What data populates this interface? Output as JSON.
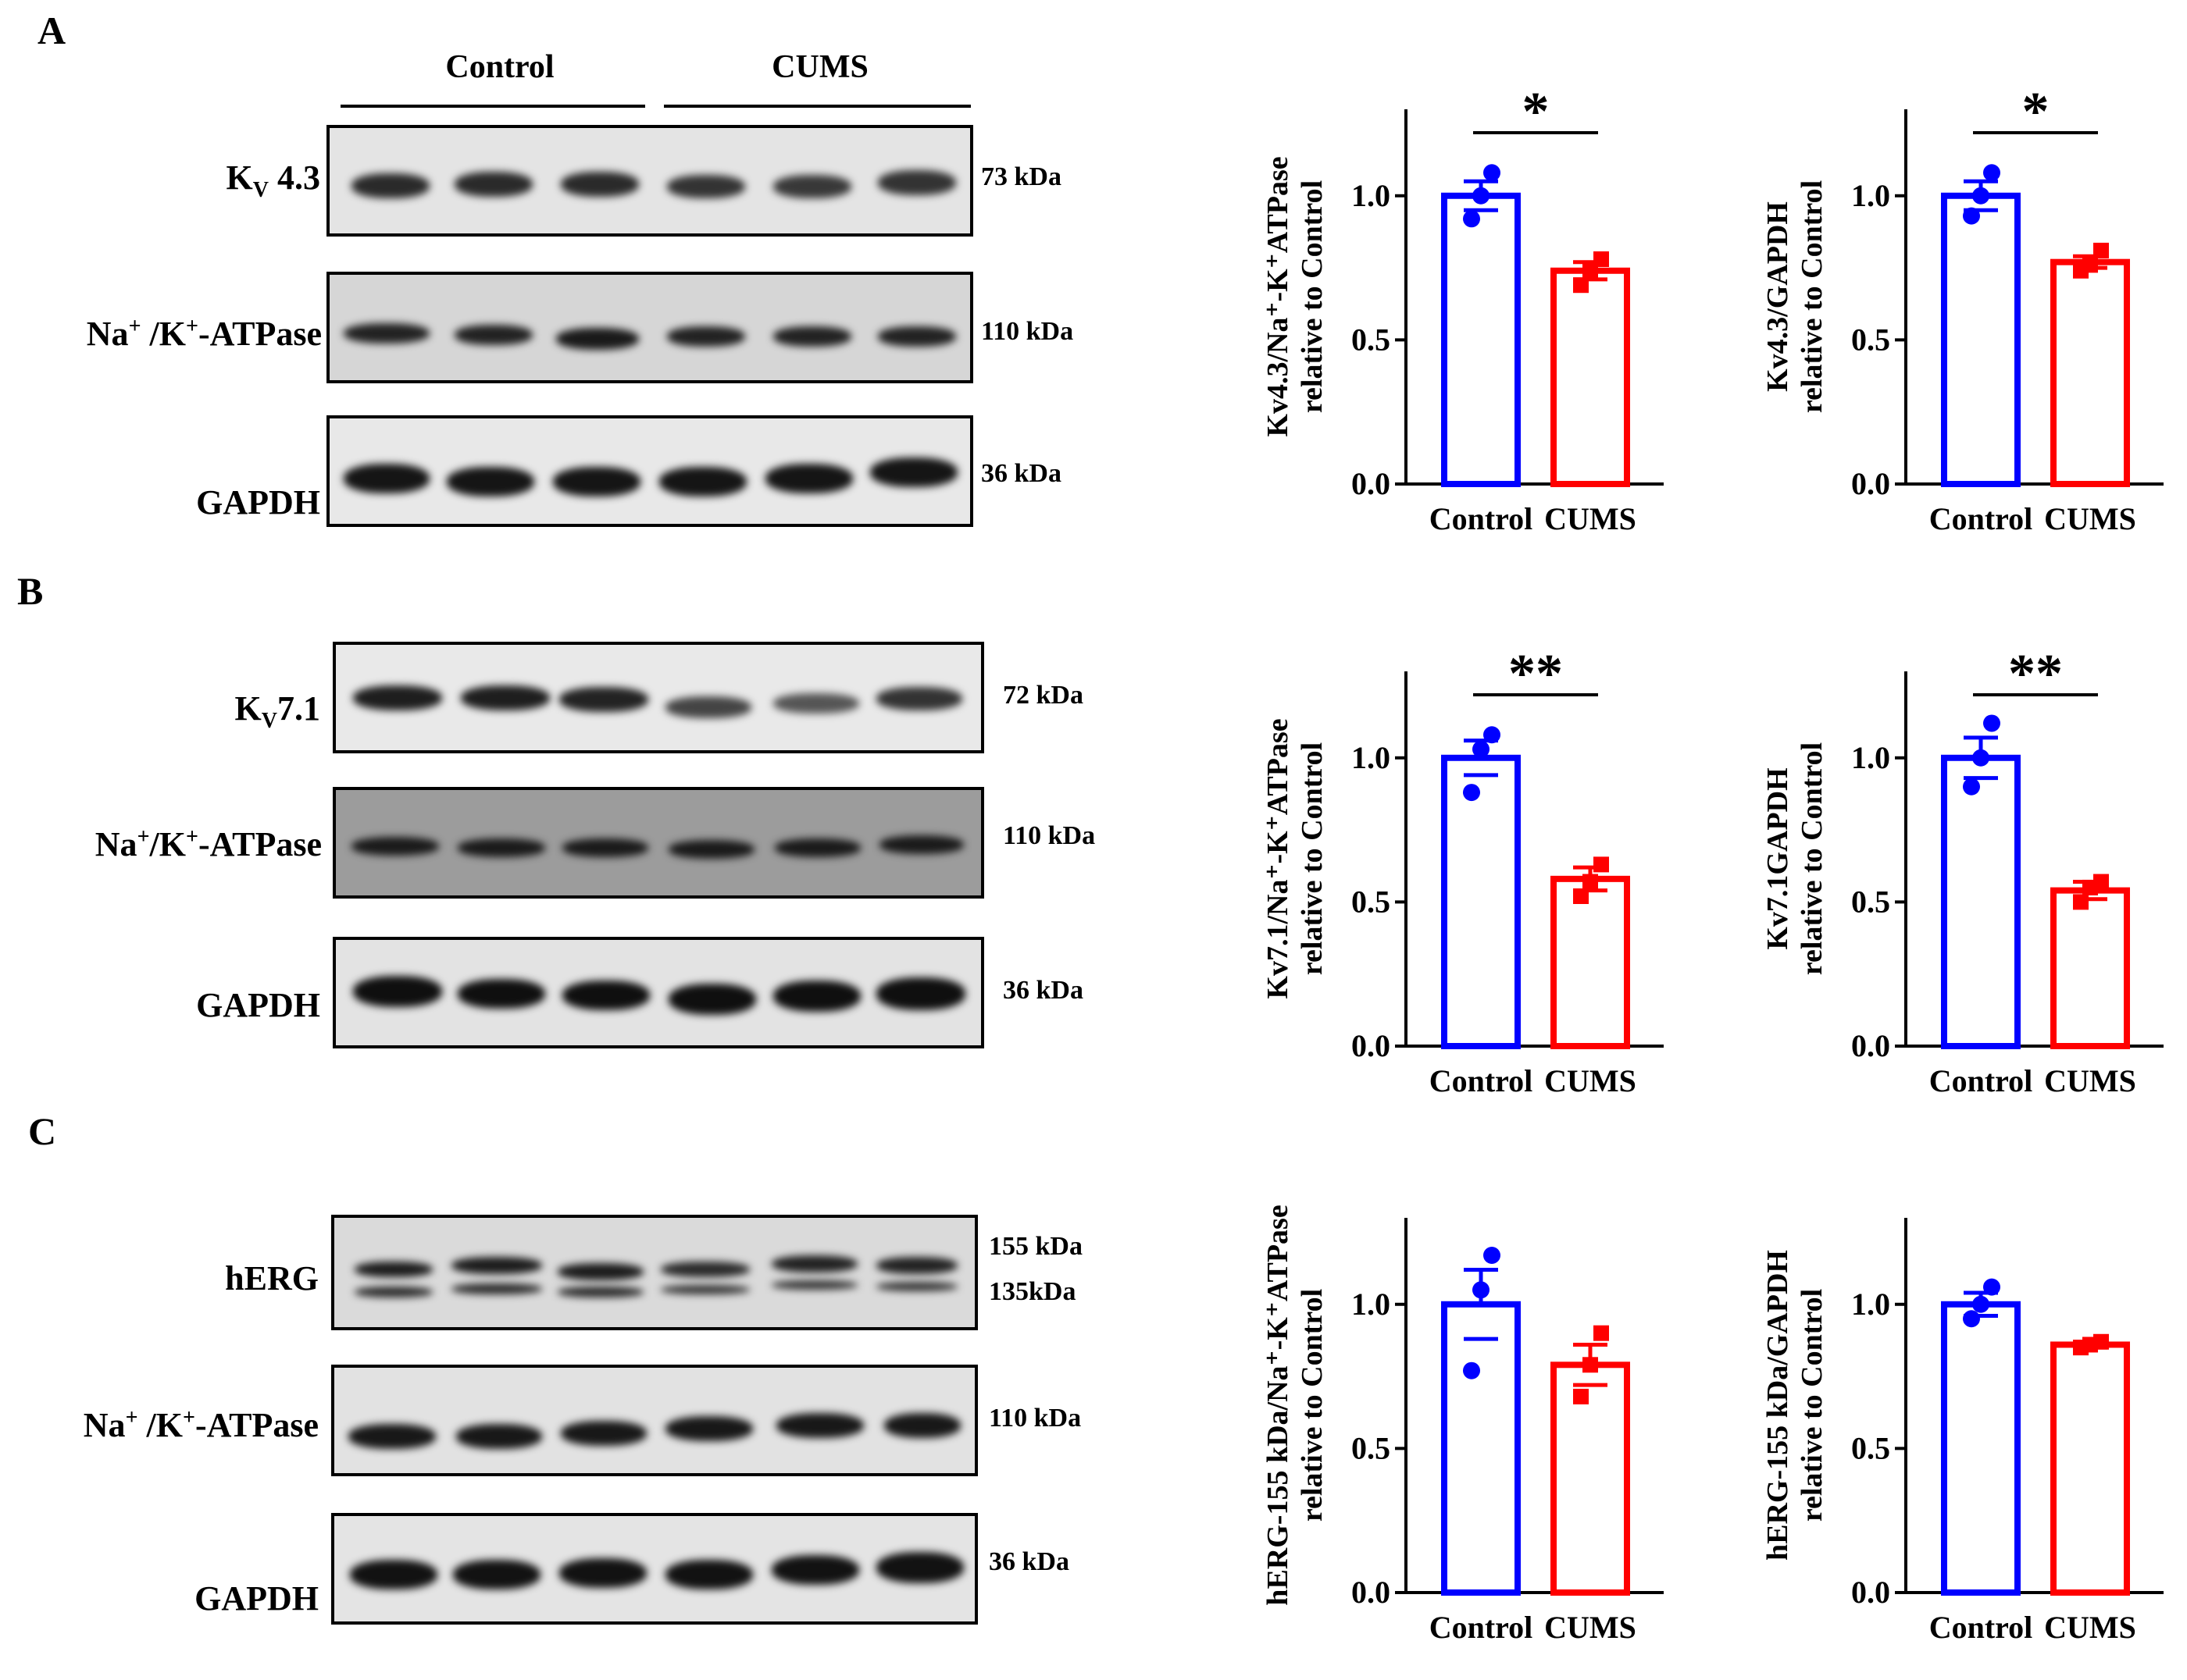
{
  "panels": [
    {
      "letter": "A",
      "groups": {
        "control": "Control",
        "cums": "CUMS"
      },
      "blots": [
        {
          "label_main": "K",
          "label_sub": "V",
          "label_rest": " 4.3",
          "kda": "73 kDa",
          "kda2": ""
        },
        {
          "label_main": "Na",
          "label_sup1": "+",
          "label_mid": " /K",
          "label_sup2": "+",
          "label_rest": "-ATPase",
          "kda": "110 kDa",
          "kda2": ""
        },
        {
          "label_main": "GAPDH",
          "kda": "36 kDa",
          "kda2": ""
        }
      ]
    },
    {
      "letter": "B",
      "blots": [
        {
          "label_main": "K",
          "label_sub": "V",
          "label_rest": "7.1",
          "kda": "72 kDa",
          "kda2": ""
        },
        {
          "label_main": "Na",
          "label_sup1": "+",
          "label_mid": "/K",
          "label_sup2": "+",
          "label_rest": "-ATPase",
          "kda": "110 kDa",
          "kda2": ""
        },
        {
          "label_main": "GAPDH",
          "kda": "36 kDa",
          "kda2": ""
        }
      ]
    },
    {
      "letter": "C",
      "blots": [
        {
          "label_main": "hERG",
          "kda": "155 kDa",
          "kda2": "135kDa"
        },
        {
          "label_main": "Na",
          "label_sup1": "+",
          "label_mid": " /K",
          "label_sup2": "+",
          "label_rest": "-ATPase",
          "kda": "110 kDa",
          "kda2": ""
        },
        {
          "label_main": "GAPDH",
          "kda": "36 kDa",
          "kda2": ""
        }
      ]
    }
  ],
  "chart_data": [
    {
      "type": "bar",
      "panel": "A",
      "categories": [
        "Control",
        "CUMS"
      ],
      "values": [
        1.0,
        0.74
      ],
      "sem": [
        0.05,
        0.03
      ],
      "points": [
        [
          0.92,
          1.0,
          1.08
        ],
        [
          0.69,
          0.74,
          0.78
        ]
      ],
      "ylabel_line1": "Kv4.3/Na⁺-K⁺ATPase",
      "ylabel_line2": "relative to Control",
      "yticks": [
        "0.0",
        "0.5",
        "1.0"
      ],
      "ylim": [
        0,
        1.3
      ],
      "significance": "*",
      "colors": [
        "#0000ff",
        "#ff0000"
      ]
    },
    {
      "type": "bar",
      "panel": "A",
      "categories": [
        "Control",
        "CUMS"
      ],
      "values": [
        1.0,
        0.77
      ],
      "sem": [
        0.05,
        0.02
      ],
      "points": [
        [
          0.93,
          1.0,
          1.08
        ],
        [
          0.74,
          0.76,
          0.81
        ]
      ],
      "ylabel_line1": "Kv4.3/GAPDH",
      "ylabel_line2": "relative to Control",
      "yticks": [
        "0.0",
        "0.5",
        "1.0"
      ],
      "ylim": [
        0,
        1.3
      ],
      "significance": "*",
      "colors": [
        "#0000ff",
        "#ff0000"
      ]
    },
    {
      "type": "bar",
      "panel": "B",
      "categories": [
        "Control",
        "CUMS"
      ],
      "values": [
        1.0,
        0.58
      ],
      "sem": [
        0.06,
        0.04
      ],
      "points": [
        [
          0.88,
          1.03,
          1.08
        ],
        [
          0.52,
          0.57,
          0.63
        ]
      ],
      "ylabel_line1": "Kv7.1/Na⁺-K⁺ATPase",
      "ylabel_line2": "relative to Control",
      "yticks": [
        "0.0",
        "0.5",
        "1.0"
      ],
      "ylim": [
        0,
        1.3
      ],
      "significance": "**",
      "colors": [
        "#0000ff",
        "#ff0000"
      ]
    },
    {
      "type": "bar",
      "panel": "B",
      "categories": [
        "Control",
        "CUMS"
      ],
      "values": [
        1.0,
        0.54
      ],
      "sem": [
        0.07,
        0.03
      ],
      "points": [
        [
          0.9,
          1.0,
          1.12
        ],
        [
          0.5,
          0.55,
          0.57
        ]
      ],
      "ylabel_line1": "Kv7.1GAPDH",
      "ylabel_line2": "relative to Control",
      "yticks": [
        "0.0",
        "0.5",
        "1.0"
      ],
      "ylim": [
        0,
        1.3
      ],
      "significance": "**",
      "colors": [
        "#0000ff",
        "#ff0000"
      ]
    },
    {
      "type": "bar",
      "panel": "C",
      "categories": [
        "Control",
        "CUMS"
      ],
      "values": [
        1.0,
        0.79
      ],
      "sem": [
        0.12,
        0.07
      ],
      "points": [
        [
          0.77,
          1.05,
          1.17
        ],
        [
          0.68,
          0.79,
          0.9
        ]
      ],
      "ylabel_line1": "hERG-155 kDa/Na⁺-K⁺ATPase",
      "ylabel_line2": "relative to Control",
      "yticks": [
        "0.0",
        "0.5",
        "1.0"
      ],
      "ylim": [
        0,
        1.3
      ],
      "significance": "",
      "colors": [
        "#0000ff",
        "#ff0000"
      ]
    },
    {
      "type": "bar",
      "panel": "C",
      "categories": [
        "Control",
        "CUMS"
      ],
      "values": [
        1.0,
        0.86
      ],
      "sem": [
        0.04,
        0.01
      ],
      "points": [
        [
          0.95,
          1.0,
          1.06
        ],
        [
          0.85,
          0.86,
          0.87
        ]
      ],
      "ylabel_line1": "hERG-155 kDa/GAPDH",
      "ylabel_line2": "relative to Control",
      "yticks": [
        "0.0",
        "0.5",
        "1.0"
      ],
      "ylim": [
        0,
        1.3
      ],
      "significance": "",
      "colors": [
        "#0000ff",
        "#ff0000"
      ]
    }
  ]
}
